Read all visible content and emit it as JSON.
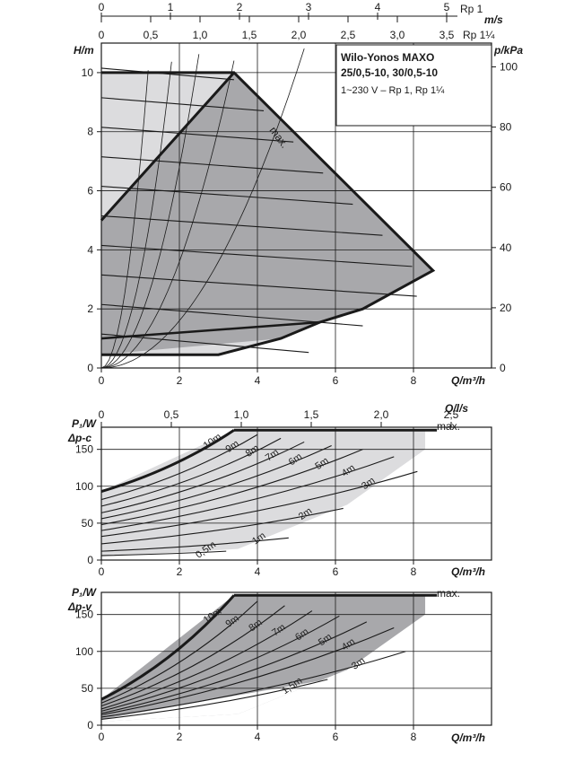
{
  "velocity_axis": {
    "rp1_ticks": [
      "0",
      "1",
      "2",
      "3",
      "4",
      "5"
    ],
    "rp1_label": "Rp 1",
    "unit": "m/s",
    "rp114_ticks": [
      "0",
      "0,5",
      "1,0",
      "1,5",
      "2,0",
      "2,5",
      "3,0",
      "3,5"
    ],
    "rp114_label": "Rp 1¼"
  },
  "info_box": {
    "line1": "Wilo-Yonos MAXO",
    "line2": "25/0,5-10, 30/0,5-10",
    "line3": "1~230 V – Rp 1, Rp 1¼"
  },
  "colors": {
    "axis": "#1a1a1a",
    "fill_dark": "#a8a8ab",
    "fill_light": "#dcdcde"
  },
  "chart_data": [
    {
      "type": "line",
      "ylabel": "H/m",
      "xlabel": "Q/m³/h",
      "y2label": "p/kPa",
      "x2label": "Q/l/s",
      "xlim": [
        0,
        10
      ],
      "ylim": [
        0,
        11
      ],
      "x_ticks": [
        "0",
        "2",
        "4",
        "6",
        "8"
      ],
      "y_ticks": [
        "0",
        "2",
        "4",
        "6",
        "8",
        "10"
      ],
      "y2_ticks": [
        "0",
        "20",
        "40",
        "60",
        "80",
        "100"
      ],
      "x2_ticks": [
        "0",
        "0,5",
        "1,0",
        "1,5",
        "2,0",
        "2,5"
      ],
      "annotations": [
        "max."
      ],
      "max_curve": [
        [
          0,
          10
        ],
        [
          3.4,
          10
        ],
        [
          8.5,
          3.3
        ],
        [
          6.7,
          2.0
        ],
        [
          5.6,
          1.55
        ],
        [
          4.6,
          1.0
        ],
        [
          3.0,
          0.45
        ],
        [
          0,
          0.45
        ]
      ],
      "min_curve": [
        [
          0,
          0.45
        ],
        [
          3.0,
          0.45
        ]
      ],
      "levels_m": [
        10,
        9,
        8,
        7,
        6,
        5,
        4,
        3,
        2,
        1
      ],
      "system_curves_k": [
        0.4,
        0.9,
        1.7,
        3.2,
        7.0
      ],
      "grid": true
    },
    {
      "type": "line",
      "mode": "Δp-c",
      "ylabel": "P₁/W",
      "ylabel2": "Δp-c",
      "xlabel": "Q/m³/h",
      "x2label": "Q/l/s",
      "xlim": [
        0,
        10
      ],
      "ylim": [
        0,
        180
      ],
      "x_ticks": [
        "0",
        "2",
        "4",
        "6",
        "8"
      ],
      "y_ticks": [
        "0",
        "50",
        "100",
        "150"
      ],
      "x2_ticks": [
        "0",
        "0,5",
        "1,0",
        "1,5",
        "2,0",
        "2,5"
      ],
      "legend_max": "max.",
      "series": [
        {
          "name": "10m",
          "values": [
            [
              0,
              93
            ],
            [
              3.4,
              176
            ]
          ]
        },
        {
          "name": "9m",
          "values": [
            [
              0,
              82
            ],
            [
              4.0,
              170
            ]
          ]
        },
        {
          "name": "8m",
          "values": [
            [
              0,
              73
            ],
            [
              4.6,
              165
            ]
          ]
        },
        {
          "name": "7m",
          "values": [
            [
              0,
              64
            ],
            [
              5.2,
              160
            ]
          ]
        },
        {
          "name": "6m",
          "values": [
            [
              0,
              56
            ],
            [
              5.9,
              155
            ]
          ]
        },
        {
          "name": "5m",
          "values": [
            [
              0,
              48
            ],
            [
              6.7,
              150
            ]
          ]
        },
        {
          "name": "4m",
          "values": [
            [
              0,
              40
            ],
            [
              7.5,
              140
            ]
          ]
        },
        {
          "name": "3m",
          "values": [
            [
              0,
              32
            ],
            [
              8.1,
              120
            ]
          ]
        },
        {
          "name": "2m",
          "values": [
            [
              0,
              22
            ],
            [
              6.2,
              70
            ]
          ]
        },
        {
          "name": "1m",
          "values": [
            [
              0,
              12
            ],
            [
              4.8,
              30
            ]
          ]
        },
        {
          "name": "0,5m",
          "values": [
            [
              0,
              6
            ],
            [
              3.2,
              12
            ]
          ]
        }
      ]
    },
    {
      "type": "line",
      "mode": "Δp-v",
      "ylabel": "P₁/W",
      "ylabel2": "Δp-v",
      "xlabel": "Q/m³/h",
      "xlim": [
        0,
        10
      ],
      "ylim": [
        0,
        180
      ],
      "x_ticks": [
        "0",
        "2",
        "4",
        "6",
        "8"
      ],
      "y_ticks": [
        "0",
        "50",
        "100",
        "150"
      ],
      "legend_max": "max.",
      "series": [
        {
          "name": "10m",
          "values": [
            [
              0,
              35
            ],
            [
              3.4,
              176
            ]
          ]
        },
        {
          "name": "9m",
          "values": [
            [
              0,
              30
            ],
            [
              4.0,
              168
            ]
          ]
        },
        {
          "name": "8m",
          "values": [
            [
              0,
              26
            ],
            [
              4.7,
              162
            ]
          ]
        },
        {
          "name": "7m",
          "values": [
            [
              0,
              22
            ],
            [
              5.4,
              155
            ]
          ]
        },
        {
          "name": "6m",
          "values": [
            [
              0,
              19
            ],
            [
              6.1,
              148
            ]
          ]
        },
        {
          "name": "5m",
          "values": [
            [
              0,
              16
            ],
            [
              6.8,
              140
            ]
          ]
        },
        {
          "name": "4m",
          "values": [
            [
              0,
              14
            ],
            [
              7.5,
              132
            ]
          ]
        },
        {
          "name": "3m",
          "values": [
            [
              0,
              11
            ],
            [
              7.8,
              100
            ]
          ]
        },
        {
          "name": "1,5m",
          "values": [
            [
              0,
              8
            ],
            [
              5.8,
              62
            ]
          ]
        }
      ]
    }
  ]
}
